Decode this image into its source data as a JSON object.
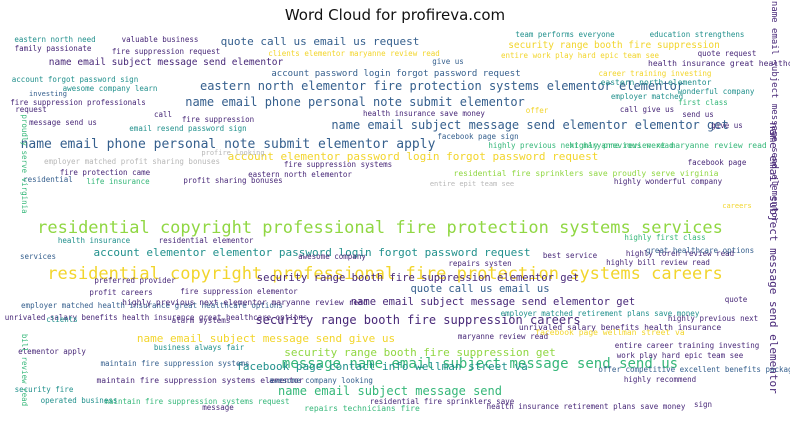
{
  "chart_data": {
    "type": "wordcloud",
    "title": "Word Cloud for profireva.com",
    "palette": {
      "purple": "#482878",
      "blue": "#355f8d",
      "teal": "#21908c",
      "green": "#35b779",
      "lime": "#90d743",
      "yellow": "#f2d52c",
      "light": "#b8b8b8"
    },
    "words": [
      {
        "text": "residential copyright professional fire protection systems services",
        "weight": 100,
        "color": "#90d743"
      },
      {
        "text": "residential copyright professional fire protection systems careers",
        "weight": 100,
        "color": "#f2d52c"
      },
      {
        "text": "name email phone personal note submit elementor",
        "weight": 68,
        "color": "#355f8d"
      },
      {
        "text": "name email phone personal note submit elementor apply",
        "weight": 68,
        "color": "#355f8d"
      },
      {
        "text": "name email subject message send elementor elementor get",
        "weight": 66,
        "color": "#355f8d"
      },
      {
        "text": "name email subject message send elementor",
        "weight": 64,
        "color": "#482878"
      },
      {
        "text": "eastern north elementor fire protection systems elementor elementor",
        "weight": 62,
        "color": "#355f8d"
      },
      {
        "text": "message name email subject message send send us",
        "weight": 74,
        "color": "#35b779"
      },
      {
        "text": "security range booth fire suppression careers",
        "weight": 64,
        "color": "#482878"
      },
      {
        "text": "security range booth fire suppression elementor get",
        "weight": 60,
        "color": "#482878"
      },
      {
        "text": "account elementor elementor password login forgot password request",
        "weight": 60,
        "color": "#21908c"
      },
      {
        "text": "account elementor password login forgot password request",
        "weight": 60,
        "color": "#f2d52c"
      },
      {
        "text": "quote call us email us request",
        "weight": 58,
        "color": "#355f8d"
      },
      {
        "text": "quote call us email us",
        "weight": 58,
        "color": "#355f8d"
      },
      {
        "text": "facebook page contact info wellman street va",
        "weight": 58,
        "color": "#21908c"
      },
      {
        "text": "name email subject message send give us",
        "weight": 56,
        "color": "#f2d52c"
      },
      {
        "text": "security range booth fire suppression get",
        "weight": 56,
        "color": "#90d743"
      },
      {
        "text": "name email subject message send elementor get",
        "weight": 56,
        "color": "#482878"
      },
      {
        "text": "name email subject message send elementor",
        "weight": 56,
        "color": "#482878"
      },
      {
        "text": "security range booth fire suppression",
        "weight": 44,
        "color": "#f2d52c"
      },
      {
        "text": "name email subject message send",
        "weight": 44,
        "color": "#35b779"
      },
      {
        "text": "account password login forgot password request",
        "weight": 44,
        "color": "#355f8d"
      },
      {
        "text": "health insurance great healthcare options",
        "weight": 40,
        "color": "#482878"
      },
      {
        "text": "highly previous next maryanne review read",
        "weight": 38,
        "color": "#35b779"
      },
      {
        "text": "residential fire sprinklers save proudly serve virginia",
        "weight": 38,
        "color": "#90d743"
      },
      {
        "text": "employer matched profit sharing bonuses",
        "weight": 38,
        "color": "#b8b8b8"
      },
      {
        "text": "eastern north elementor",
        "weight": 36,
        "color": "#21908c"
      },
      {
        "text": "employer matched health insurance great healthcare options",
        "weight": 36,
        "color": "#355f8d"
      },
      {
        "text": "unrivaled salary benefits health insurance great healthcare options",
        "weight": 36,
        "color": "#482878"
      },
      {
        "text": "employer matched retirement plans save money",
        "weight": 36,
        "color": "#21908c"
      },
      {
        "text": "unrivaled salary benefits health insurance",
        "weight": 34,
        "color": "#482878"
      },
      {
        "text": "highly previous next elementor maryanne review read",
        "weight": 36,
        "color": "#482878"
      },
      {
        "text": "highly previous next",
        "weight": 34,
        "color": "#482878"
      },
      {
        "text": "facebook page wellman street va",
        "weight": 34,
        "color": "#f2d52c"
      },
      {
        "text": "entire career training investing",
        "weight": 34,
        "color": "#482878"
      },
      {
        "text": "work play hard epic team see",
        "weight": 34,
        "color": "#482878"
      },
      {
        "text": "offer competitive excellent benefits packages",
        "weight": 34,
        "color": "#355f8d"
      },
      {
        "text": "maintain fire suppression systems elementor",
        "weight": 36,
        "color": "#482878"
      },
      {
        "text": "maintain fire suppression systems",
        "weight": 34,
        "color": "#355f8d"
      },
      {
        "text": "maintain fire suppression systems request",
        "weight": 34,
        "color": "#35b779"
      },
      {
        "text": "health insurance retirement plans save money",
        "weight": 34,
        "color": "#482878"
      },
      {
        "text": "repairs technicians fire",
        "weight": 34,
        "color": "#35b779"
      },
      {
        "text": "residential fire sprinklers save",
        "weight": 34,
        "color": "#482878"
      },
      {
        "text": "operated business",
        "weight": 32,
        "color": "#21908c"
      },
      {
        "text": "security fire",
        "weight": 32,
        "color": "#21908c"
      },
      {
        "text": "business always fair",
        "weight": 32,
        "color": "#21908c"
      },
      {
        "text": "elementor apply",
        "weight": 30,
        "color": "#482878"
      },
      {
        "text": "awesome company looking",
        "weight": 30,
        "color": "#355f8d"
      },
      {
        "text": "highly recommend",
        "weight": 30,
        "color": "#482878"
      },
      {
        "text": "maryanne review read",
        "weight": 30,
        "color": "#482878"
      },
      {
        "text": "alarm systems",
        "weight": 30,
        "color": "#482878"
      },
      {
        "text": "clients",
        "weight": 30,
        "color": "#21908c"
      },
      {
        "text": "fire suppression elementor",
        "weight": 30,
        "color": "#482878"
      },
      {
        "text": "profit careers",
        "weight": 30,
        "color": "#482878"
      },
      {
        "text": "preferred provider",
        "weight": 30,
        "color": "#482878"
      },
      {
        "text": "awesome company",
        "weight": 30,
        "color": "#482878"
      },
      {
        "text": "repairs systen",
        "weight": 30,
        "color": "#482878"
      },
      {
        "text": "best service",
        "weight": 30,
        "color": "#482878"
      },
      {
        "text": "highly loren review read",
        "weight": 30,
        "color": "#482878"
      },
      {
        "text": "highly bill review read",
        "weight": 30,
        "color": "#482878"
      },
      {
        "text": "great healthcare options",
        "weight": 30,
        "color": "#355f8d"
      },
      {
        "text": "highly first class",
        "weight": 30,
        "color": "#35b779"
      },
      {
        "text": "health insurance",
        "weight": 30,
        "color": "#21908c"
      },
      {
        "text": "residential elementor",
        "weight": 30,
        "color": "#482878"
      },
      {
        "text": "highly wonderful company",
        "weight": 30,
        "color": "#482878"
      },
      {
        "text": "entire epit team see",
        "weight": 28,
        "color": "#b8b8b8"
      },
      {
        "text": "life insurance",
        "weight": 30,
        "color": "#35b779"
      },
      {
        "text": "residential",
        "weight": 30,
        "color": "#355f8d"
      },
      {
        "text": "fire protection came",
        "weight": 30,
        "color": "#482878"
      },
      {
        "text": "profit sharing bonuses",
        "weight": 30,
        "color": "#482878"
      },
      {
        "text": "eastern north elementor",
        "weight": 30,
        "color": "#482878"
      },
      {
        "text": "fire suppression systems",
        "weight": 30,
        "color": "#482878"
      },
      {
        "text": "profire looking",
        "weight": 28,
        "color": "#b8b8b8"
      },
      {
        "text": "facebook page sign",
        "weight": 30,
        "color": "#355f8d"
      },
      {
        "text": "health insurance save money",
        "weight": 30,
        "color": "#482878"
      },
      {
        "text": "message send us",
        "weight": 30,
        "color": "#482878"
      },
      {
        "text": "email resend password sign",
        "weight": 30,
        "color": "#21908c"
      },
      {
        "text": "fire suppression professionals",
        "weight": 30,
        "color": "#482878"
      },
      {
        "text": "awesome company learn",
        "weight": 30,
        "color": "#21908c"
      },
      {
        "text": "account forgot password sign",
        "weight": 30,
        "color": "#21908c"
      },
      {
        "text": "fire suppression request",
        "weight": 30,
        "color": "#482878"
      },
      {
        "text": "clients elementor maryanne review read",
        "weight": 30,
        "color": "#f2d52c"
      },
      {
        "text": "entire work play hard epic team see",
        "weight": 30,
        "color": "#f2d52c"
      },
      {
        "text": "team performs everyone",
        "weight": 30,
        "color": "#21908c"
      },
      {
        "text": "education strengthens",
        "weight": 30,
        "color": "#21908c"
      },
      {
        "text": "eastern north need",
        "weight": 30,
        "color": "#21908c"
      },
      {
        "text": "valuable business",
        "weight": 30,
        "color": "#482878"
      },
      {
        "text": "family passionate",
        "weight": 30,
        "color": "#482878"
      },
      {
        "text": "give us",
        "weight": 30,
        "color": "#355f8d"
      },
      {
        "text": "quote request",
        "weight": 30,
        "color": "#482878"
      },
      {
        "text": "wonderful company",
        "weight": 30,
        "color": "#21908c"
      },
      {
        "text": "career training investing",
        "weight": 30,
        "color": "#f2d52c"
      },
      {
        "text": "employer matched",
        "weight": 30,
        "color": "#21908c"
      },
      {
        "text": "call give us",
        "weight": 30,
        "color": "#482878"
      },
      {
        "text": "first class",
        "weight": 30,
        "color": "#35b779"
      },
      {
        "text": "send us",
        "weight": 30,
        "color": "#482878"
      },
      {
        "text": "highly previous next maryanne review read",
        "weight": 34,
        "color": "#35b779"
      },
      {
        "text": "facebook page",
        "weight": 30,
        "color": "#482878"
      },
      {
        "text": "proudly serve virginia",
        "weight": 30,
        "color": "#35b779"
      },
      {
        "text": "bill review read",
        "weight": 30,
        "color": "#35b779"
      },
      {
        "text": "name email subject message send elementor",
        "weight": 62,
        "color": "#482878"
      },
      {
        "text": "fire suppression",
        "weight": 30,
        "color": "#482878"
      },
      {
        "text": "request",
        "weight": 30,
        "color": "#482878"
      },
      {
        "text": "call",
        "weight": 30,
        "color": "#482878"
      },
      {
        "text": "quote",
        "weight": 30,
        "color": "#482878"
      },
      {
        "text": "services",
        "weight": 30,
        "color": "#355f8d"
      },
      {
        "text": "sign",
        "weight": 30,
        "color": "#482878"
      },
      {
        "text": "message",
        "weight": 30,
        "color": "#482878"
      },
      {
        "text": "offer",
        "weight": 30,
        "color": "#f2d52c"
      },
      {
        "text": "investing",
        "weight": 28,
        "color": "#355f8d"
      },
      {
        "text": "give us",
        "weight": 30,
        "color": "#482878"
      },
      {
        "text": "careers",
        "weight": 28,
        "color": "#f2d52c"
      }
    ]
  }
}
